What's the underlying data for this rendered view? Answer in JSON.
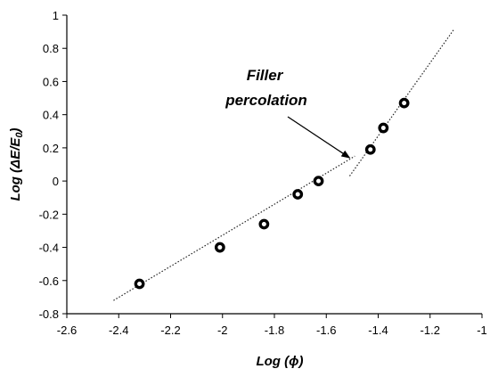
{
  "chart_data": {
    "type": "scatter",
    "xlabel": "Log (ϕ)",
    "ylabel": "Log (ΔE/E0)",
    "ylabel_main": "Log (ΔE/E",
    "ylabel_sub": "0",
    "ylabel_close": ")",
    "xlim": [
      -2.6,
      -1.0
    ],
    "ylim": [
      -0.8,
      1.0
    ],
    "xticks": [
      -2.6,
      -2.4,
      -2.2,
      -2.0,
      -1.8,
      -1.6,
      -1.4,
      -1.2,
      -1.0
    ],
    "xtick_labels": [
      "-2.6",
      "-2.4",
      "-2.2",
      "-2",
      "-1.8",
      "-1.6",
      "-1.4",
      "-1.2",
      "-1"
    ],
    "yticks": [
      -0.8,
      -0.6,
      -0.4,
      -0.2,
      0.0,
      0.2,
      0.4,
      0.6,
      0.8,
      1.0
    ],
    "ytick_labels": [
      "-0.8",
      "-0.6",
      "-0.4",
      "-0.2",
      "0",
      "0.2",
      "0.4",
      "0.6",
      "0.8",
      "1"
    ],
    "grid": false,
    "points": [
      {
        "x": -2.32,
        "y": -0.62
      },
      {
        "x": -2.01,
        "y": -0.4
      },
      {
        "x": -1.84,
        "y": -0.26
      },
      {
        "x": -1.71,
        "y": -0.08
      },
      {
        "x": -1.63,
        "y": 0.0
      },
      {
        "x": -1.43,
        "y": 0.19
      },
      {
        "x": -1.38,
        "y": 0.32
      },
      {
        "x": -1.3,
        "y": 0.47
      }
    ],
    "fit_lines": [
      {
        "x": [
          -2.42,
          -1.49
        ],
        "y": [
          -0.72,
          0.15
        ]
      },
      {
        "x": [
          -1.51,
          -1.11
        ],
        "y": [
          0.03,
          0.91
        ]
      }
    ],
    "annotation": {
      "lines": [
        "Filler",
        "percolation"
      ],
      "arrow_to": {
        "x": -1.51,
        "y": 0.14
      }
    }
  }
}
